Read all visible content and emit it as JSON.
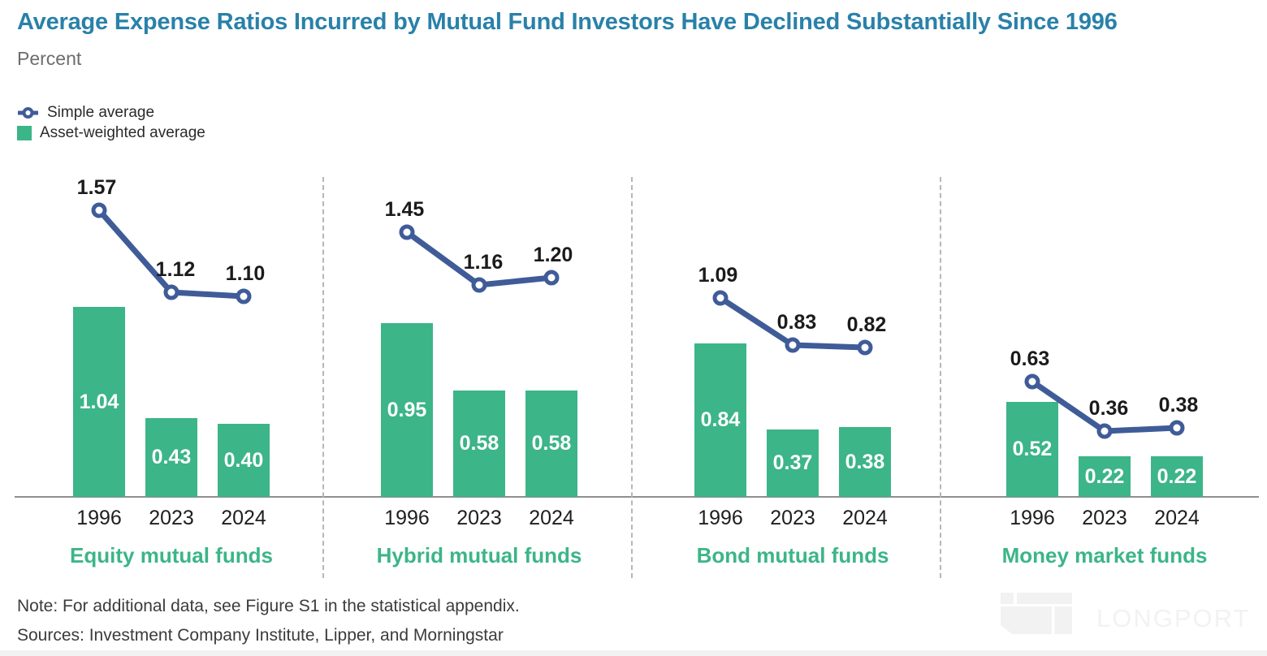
{
  "header": {
    "title": "Average Expense Ratios Incurred by Mutual Fund Investors Have Declined Substantially Since 1996",
    "subtitle": "Percent"
  },
  "legend": [
    {
      "name": "Simple average",
      "marker": "line-circle-icon",
      "color": "#3f5c99"
    },
    {
      "name": "Asset-weighted average",
      "marker": "square-icon",
      "color": "#3cb588"
    }
  ],
  "chart_data": {
    "type": "bar",
    "title": "Average Expense Ratios Incurred by Mutual Fund Investors Have Declined Substantially Since 1996",
    "ylabel": "Percent",
    "xlabel": "",
    "categories": [
      "1996",
      "2023",
      "2024"
    ],
    "series_meta": {
      "line": "Simple average",
      "bar": "Asset-weighted average"
    },
    "groups": [
      {
        "label": "Equity mutual funds",
        "simple_average": [
          1.57,
          1.12,
          1.1
        ],
        "asset_weighted_average": [
          1.04,
          0.43,
          0.4
        ]
      },
      {
        "label": "Hybrid mutual funds",
        "simple_average": [
          1.45,
          1.16,
          1.2
        ],
        "asset_weighted_average": [
          0.95,
          0.58,
          0.58
        ]
      },
      {
        "label": "Bond mutual funds",
        "simple_average": [
          1.09,
          0.83,
          0.82
        ],
        "asset_weighted_average": [
          0.84,
          0.37,
          0.38
        ]
      },
      {
        "label": "Money market funds",
        "simple_average": [
          0.63,
          0.36,
          0.38
        ],
        "asset_weighted_average": [
          0.52,
          0.22,
          0.22
        ]
      }
    ],
    "value_format": "2dp",
    "colors": {
      "line": "#3f5c99",
      "bar": "#3cb588",
      "label_black": "#1b1b1b",
      "label_white": "#ffffff"
    },
    "layout": {
      "grid": false,
      "legend_position": "top-left",
      "ylim": [
        0,
        1.75
      ],
      "panel_dividers": "dashed"
    }
  },
  "footer": {
    "note": "Note: For additional data, see Figure S1 in the statistical appendix.",
    "sources": "Sources: Investment Company Institute, Lipper, and Morningstar"
  },
  "watermark": {
    "text": "LONGPORT"
  }
}
